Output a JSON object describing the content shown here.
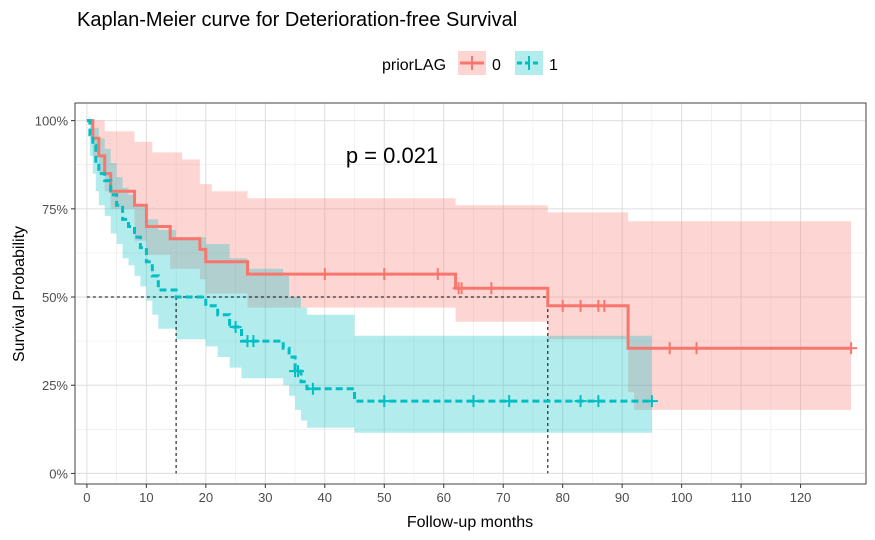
{
  "chart_data": {
    "type": "line",
    "subtype": "kaplan-meier",
    "title": "Kaplan-Meier curve for Deterioration-free Survival",
    "xlabel": "Follow-up months",
    "ylabel": "Survival Probability",
    "xlim": [
      -2,
      131
    ],
    "ylim": [
      -0.03,
      1.05
    ],
    "xticks": [
      0,
      10,
      20,
      30,
      40,
      50,
      60,
      70,
      80,
      90,
      100,
      110,
      120
    ],
    "yticks": [
      0,
      0.25,
      0.5,
      0.75,
      1.0
    ],
    "ytick_labels": [
      "0%",
      "25%",
      "50%",
      "75%",
      "100%"
    ],
    "grid": true,
    "legend": {
      "title": "priorLAG",
      "position": "top"
    },
    "pvalue_text": "p = 0.021",
    "median_lines": [
      {
        "x": 15,
        "y": 0.5
      },
      {
        "x": 77.5,
        "y": 0.5
      }
    ],
    "series": [
      {
        "name": "0",
        "color": "#F8766D",
        "fill": "#F8766D",
        "line_style": "solid",
        "steps": [
          [
            0,
            1.0
          ],
          [
            1,
            0.95
          ],
          [
            2,
            0.9
          ],
          [
            3,
            0.85
          ],
          [
            4,
            0.8
          ],
          [
            8,
            0.76
          ],
          [
            10,
            0.7
          ],
          [
            14,
            0.665
          ],
          [
            19,
            0.635
          ],
          [
            20,
            0.6
          ],
          [
            27,
            0.565
          ],
          [
            62,
            0.525
          ],
          [
            77.5,
            0.475
          ],
          [
            91,
            0.355
          ],
          [
            128.5,
            0.355
          ]
        ],
        "ci_upper": [
          [
            0,
            1.0
          ],
          [
            3,
            0.97
          ],
          [
            8,
            0.94
          ],
          [
            11,
            0.91
          ],
          [
            16,
            0.89
          ],
          [
            19,
            0.82
          ],
          [
            21,
            0.8
          ],
          [
            27,
            0.78
          ],
          [
            62,
            0.76
          ],
          [
            77.5,
            0.74
          ],
          [
            91,
            0.715
          ],
          [
            128.5,
            0.715
          ]
        ],
        "ci_lower": [
          [
            0,
            1.0
          ],
          [
            1,
            0.9
          ],
          [
            2,
            0.85
          ],
          [
            3,
            0.8
          ],
          [
            4,
            0.75
          ],
          [
            8,
            0.66
          ],
          [
            10,
            0.62
          ],
          [
            14,
            0.58
          ],
          [
            19,
            0.55
          ],
          [
            20,
            0.51
          ],
          [
            27,
            0.47
          ],
          [
            62,
            0.43
          ],
          [
            77.5,
            0.38
          ],
          [
            91,
            0.23
          ],
          [
            92,
            0.18
          ],
          [
            128.5,
            0.18
          ]
        ],
        "censor_x": [
          40,
          50,
          59,
          62.5,
          63,
          68,
          80,
          83,
          86,
          87,
          98,
          102.5,
          128.5
        ]
      },
      {
        "name": "1",
        "color": "#00BFC4",
        "fill": "#00BFC4",
        "line_style": "dashed",
        "steps": [
          [
            0,
            1.0
          ],
          [
            0.5,
            0.96
          ],
          [
            1,
            0.93
          ],
          [
            1.5,
            0.88
          ],
          [
            2,
            0.85
          ],
          [
            3,
            0.83
          ],
          [
            4,
            0.79
          ],
          [
            5,
            0.76
          ],
          [
            6,
            0.72
          ],
          [
            7,
            0.7
          ],
          [
            8,
            0.67
          ],
          [
            9,
            0.64
          ],
          [
            10,
            0.6
          ],
          [
            11,
            0.56
          ],
          [
            12,
            0.52
          ],
          [
            15,
            0.5
          ],
          [
            20,
            0.475
          ],
          [
            22,
            0.45
          ],
          [
            24,
            0.415
          ],
          [
            26,
            0.375
          ],
          [
            33,
            0.355
          ],
          [
            34,
            0.33
          ],
          [
            35,
            0.29
          ],
          [
            36,
            0.26
          ],
          [
            37,
            0.24
          ],
          [
            45,
            0.205
          ],
          [
            95,
            0.205
          ]
        ],
        "ci_upper": [
          [
            0,
            1.0
          ],
          [
            1,
            0.98
          ],
          [
            2,
            0.95
          ],
          [
            3,
            0.92
          ],
          [
            4,
            0.88
          ],
          [
            5,
            0.84
          ],
          [
            6,
            0.81
          ],
          [
            7,
            0.79
          ],
          [
            8,
            0.76
          ],
          [
            10,
            0.72
          ],
          [
            12,
            0.69
          ],
          [
            15,
            0.67
          ],
          [
            20,
            0.65
          ],
          [
            24,
            0.61
          ],
          [
            27,
            0.58
          ],
          [
            33,
            0.56
          ],
          [
            34,
            0.5
          ],
          [
            36,
            0.47
          ],
          [
            37,
            0.45
          ],
          [
            45,
            0.39
          ],
          [
            95,
            0.39
          ]
        ],
        "ci_lower": [
          [
            0,
            1.0
          ],
          [
            0.5,
            0.9
          ],
          [
            1,
            0.85
          ],
          [
            1.5,
            0.8
          ],
          [
            2,
            0.76
          ],
          [
            3,
            0.73
          ],
          [
            4,
            0.68
          ],
          [
            5,
            0.65
          ],
          [
            6,
            0.61
          ],
          [
            7,
            0.59
          ],
          [
            8,
            0.56
          ],
          [
            9,
            0.53
          ],
          [
            10,
            0.49
          ],
          [
            11,
            0.45
          ],
          [
            12,
            0.41
          ],
          [
            15,
            0.38
          ],
          [
            20,
            0.36
          ],
          [
            22,
            0.33
          ],
          [
            24,
            0.3
          ],
          [
            26,
            0.27
          ],
          [
            33,
            0.25
          ],
          [
            34,
            0.22
          ],
          [
            35,
            0.18
          ],
          [
            36,
            0.15
          ],
          [
            37,
            0.13
          ],
          [
            45,
            0.115
          ],
          [
            95,
            0.115
          ]
        ],
        "censor_x": [
          25,
          27,
          28,
          35,
          35.5,
          38,
          50,
          65,
          71,
          83,
          86,
          95
        ]
      }
    ]
  }
}
